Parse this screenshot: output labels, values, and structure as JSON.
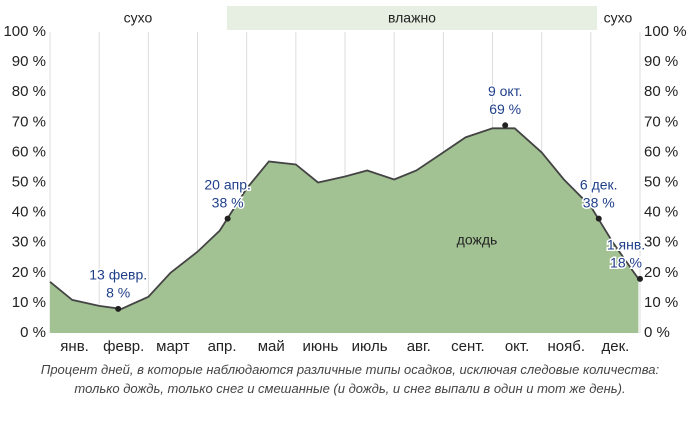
{
  "chart_data": {
    "type": "area",
    "categories": [
      "янв.",
      "февр.",
      "март",
      "апр.",
      "май",
      "июнь",
      "июль",
      "авг.",
      "сент.",
      "окт.",
      "нояб.",
      "дек."
    ],
    "series": [
      {
        "name": "дождь",
        "color": "#a3c293",
        "x": [
          "1 янв.",
          "15 янв.",
          "1 февр.",
          "15 февр.",
          "1 март",
          "15 март",
          "1 апр.",
          "15 апр.",
          "1 май",
          "15 май",
          "1 июнь",
          "15 июнь",
          "1 июль",
          "15 июль",
          "1 авг.",
          "15 авг.",
          "1 сент.",
          "15 сент.",
          "1 окт.",
          "15 окт.",
          "1 нояб.",
          "15 нояб.",
          "1 дек.",
          "15 дек.",
          "31 дек."
        ],
        "values": [
          17,
          11,
          9,
          8,
          12,
          20,
          27,
          34,
          48,
          57,
          56,
          50,
          52,
          54,
          51,
          54,
          60,
          65,
          68,
          68,
          60,
          51,
          42,
          30,
          18
        ]
      }
    ],
    "ylim": [
      0,
      100
    ],
    "yticks": [
      {
        "value": 0,
        "label": "0 %"
      },
      {
        "value": 10,
        "label": "10 %"
      },
      {
        "value": 20,
        "label": "20 %"
      },
      {
        "value": 30,
        "label": "30 %"
      },
      {
        "value": 40,
        "label": "40 %"
      },
      {
        "value": 50,
        "label": "50 %"
      },
      {
        "value": 60,
        "label": "60 %"
      },
      {
        "value": 70,
        "label": "70 %"
      },
      {
        "value": 80,
        "label": "80 %"
      },
      {
        "value": 90,
        "label": "90 %"
      },
      {
        "value": 100,
        "label": "100 %"
      }
    ],
    "annotations": [
      {
        "date": "13 февр.",
        "value": 8,
        "value_label": "8 %"
      },
      {
        "date": "20 апр.",
        "value": 38,
        "value_label": "38 %"
      },
      {
        "date": "9 окт.",
        "value": 69,
        "value_label": "69 %"
      },
      {
        "date": "6 дек.",
        "value": 38,
        "value_label": "38 %"
      },
      {
        "date": "1 янв.",
        "value": 18,
        "value_label": "18 %"
      }
    ],
    "seasons": [
      "сухо",
      "влажно",
      "сухо"
    ],
    "caption": "Процент дней, в которые наблюдаются различные типы осадков, исключая следовые количества: только дождь, только снег и смешанные (и дождь, и снег выпали в один и тот же день)."
  }
}
